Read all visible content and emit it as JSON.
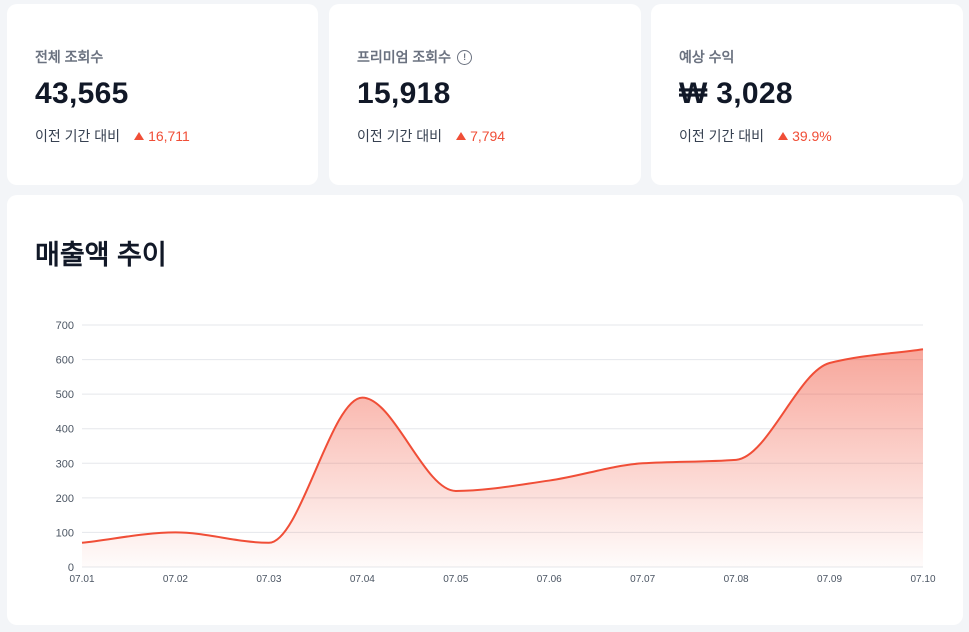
{
  "stats": [
    {
      "label": "전체 조회수",
      "value": "43,565",
      "compare_label": "이전 기간 대비",
      "delta": "16,711",
      "has_info_icon": false
    },
    {
      "label": "프리미엄 조회수",
      "value": "15,918",
      "compare_label": "이전 기간 대비",
      "delta": "7,794",
      "has_info_icon": true,
      "info_icon_glyph": "!"
    },
    {
      "label": "예상 수익",
      "value": "₩ 3,028",
      "compare_label": "이전 기간 대비",
      "delta": "39.9%",
      "has_info_icon": false
    }
  ],
  "colors": {
    "accent": "#f04e37",
    "background": "#f3f5f8",
    "card": "#ffffff",
    "text_primary": "#111827",
    "text_secondary": "#6b7280",
    "grid": "#e5e7eb"
  },
  "chart": {
    "title": "매출액 추이"
  },
  "chart_data": {
    "type": "area",
    "title": "매출액 추이",
    "xlabel": "",
    "ylabel": "",
    "categories": [
      "07.01",
      "07.02",
      "07.03",
      "07.04",
      "07.05",
      "07.06",
      "07.07",
      "07.08",
      "07.09",
      "07.10"
    ],
    "series": [
      {
        "values": [
          70,
          100,
          70,
          490,
          220,
          250,
          300,
          310,
          590,
          630
        ]
      }
    ],
    "yticks": [
      0,
      100,
      200,
      300,
      400,
      500,
      600,
      700
    ],
    "ylim": [
      0,
      700
    ],
    "grid": true,
    "legend": "none",
    "smooth": true
  }
}
